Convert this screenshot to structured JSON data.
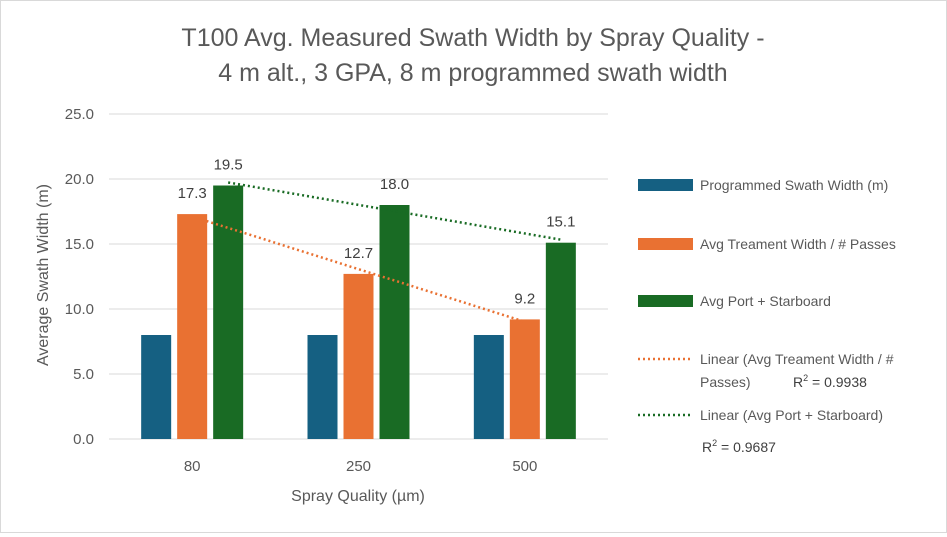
{
  "chart_data": {
    "type": "bar",
    "title_lines": [
      "T100 Avg. Measured Swath Width by Spray Quality -",
      "4 m alt., 3 GPA, 8 m programmed swath width"
    ],
    "xlabel": "Spray Quality (µm)",
    "ylabel": "Average Swath Width (m)",
    "categories": [
      "80",
      "250",
      "500"
    ],
    "ylim": [
      0,
      25
    ],
    "yticks": [
      "0.0",
      "5.0",
      "10.0",
      "15.0",
      "20.0",
      "25.0"
    ],
    "grid": true,
    "legend_position": "right",
    "series": [
      {
        "name": "Programmed Swath Width (m)",
        "color": "#156082",
        "values": [
          8,
          8,
          8
        ],
        "data_labels": [
          "",
          "",
          ""
        ]
      },
      {
        "name": "Avg Treament Width / # Passes",
        "color": "#e97132",
        "values": [
          17.3,
          12.7,
          9.2
        ],
        "data_labels": [
          "17.3",
          "12.7",
          "9.2"
        ]
      },
      {
        "name": "Avg Port + Starboard",
        "color": "#196b24",
        "values": [
          19.5,
          18.0,
          15.1
        ],
        "data_labels": [
          "19.5",
          "18.0",
          "15.1"
        ]
      }
    ],
    "trendlines": [
      {
        "series_index": 1,
        "type": "linear",
        "color": "#e97132",
        "legend_lines": [
          "Linear (Avg Treament Width / #",
          "Passes)"
        ],
        "r2_label": "R",
        "r2_sup": "2",
        "r2_value": " = 0.9938"
      },
      {
        "series_index": 2,
        "type": "linear",
        "color": "#196b24",
        "legend_lines": [
          "Linear (Avg Port + Starboard)"
        ],
        "r2_label": "R",
        "r2_sup": "2",
        "r2_value": " = 0.9687"
      }
    ]
  }
}
